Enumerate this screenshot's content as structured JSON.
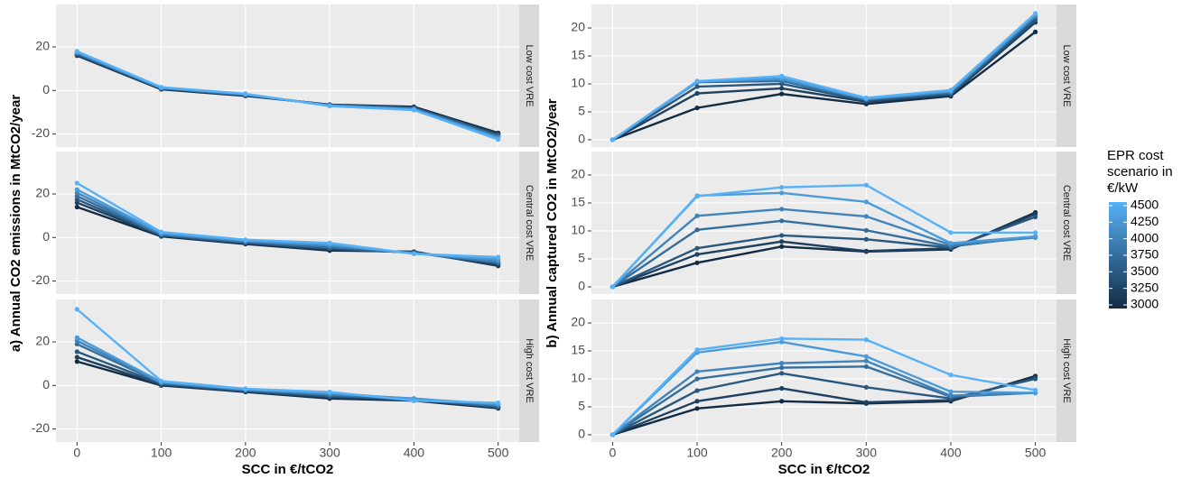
{
  "chart_data": [
    {
      "type": "line",
      "ylabel": "a) Annual CO2 emissions in MtCO2/year",
      "xlabel": "SCC in €/tCO2",
      "x": [
        0,
        100,
        200,
        300,
        400,
        500
      ],
      "xlim": [
        -25,
        525
      ],
      "xticks": [
        0,
        100,
        200,
        300,
        400,
        500
      ],
      "ylim": [
        -26,
        39.5
      ],
      "yticks": [
        -20,
        0,
        20
      ],
      "grid": true,
      "facets": [
        {
          "label": "Low cost VRE",
          "series": [
            {
              "color": "#132B43",
              "values": [
                16,
                0.5,
                -2.5,
                -6.5,
                -7.5,
                -19.5
              ]
            },
            {
              "color": "#1E4161",
              "values": [
                16.3,
                0.7,
                -2.3,
                -6.6,
                -7.8,
                -20
              ]
            },
            {
              "color": "#29587F",
              "values": [
                16.7,
                0.9,
                -2.1,
                -6.7,
                -8,
                -20.5
              ]
            },
            {
              "color": "#346E9D",
              "values": [
                17,
                1,
                -2,
                -6.8,
                -8.3,
                -21
              ]
            },
            {
              "color": "#4084BB",
              "values": [
                17.3,
                1.2,
                -1.9,
                -6.9,
                -8.5,
                -21.5
              ]
            },
            {
              "color": "#4B9BD9",
              "values": [
                17.7,
                1.3,
                -1.7,
                -7,
                -8.8,
                -22
              ]
            },
            {
              "color": "#56B1F7",
              "values": [
                18,
                1.5,
                -1.5,
                -7.2,
                -9,
                -22.5
              ]
            }
          ]
        },
        {
          "label": "Central cost VRE",
          "series": [
            {
              "color": "#132B43",
              "values": [
                14,
                0.5,
                -3,
                -6,
                -6.5,
                -13
              ]
            },
            {
              "color": "#1E4161",
              "values": [
                16,
                0.8,
                -2.7,
                -5.5,
                -6.8,
                -12.5
              ]
            },
            {
              "color": "#29587F",
              "values": [
                17.5,
                1,
                -2.4,
                -5,
                -7,
                -12
              ]
            },
            {
              "color": "#346E9D",
              "values": [
                19,
                1.3,
                -2,
                -4.5,
                -7,
                -11.5
              ]
            },
            {
              "color": "#4084BB",
              "values": [
                20.5,
                1.6,
                -1.7,
                -3.8,
                -7.2,
                -11
              ]
            },
            {
              "color": "#4B9BD9",
              "values": [
                22,
                2,
                -1.4,
                -3.2,
                -7.4,
                -10
              ]
            },
            {
              "color": "#56B1F7",
              "values": [
                25,
                2.5,
                -1,
                -2.5,
                -7.5,
                -9
              ]
            }
          ]
        },
        {
          "label": "High cost VRE",
          "series": [
            {
              "color": "#132B43",
              "values": [
                11,
                0,
                -3,
                -6,
                -7,
                -10.5
              ]
            },
            {
              "color": "#1E4161",
              "values": [
                13,
                0.3,
                -2.8,
                -5.5,
                -6.8,
                -10
              ]
            },
            {
              "color": "#29587F",
              "values": [
                15.5,
                0.7,
                -2.5,
                -5,
                -6.5,
                -10
              ]
            },
            {
              "color": "#346E9D",
              "values": [
                19,
                1,
                -2.2,
                -4.5,
                -6.3,
                -9.5
              ]
            },
            {
              "color": "#4084BB",
              "values": [
                20.5,
                1.3,
                -2,
                -4,
                -6,
                -9
              ]
            },
            {
              "color": "#4B9BD9",
              "values": [
                22,
                1.6,
                -1.8,
                -3.5,
                -6.2,
                -8.5
              ]
            },
            {
              "color": "#56B1F7",
              "values": [
                35,
                2,
                -1.5,
                -3,
                -7,
                -8
              ]
            }
          ]
        }
      ]
    },
    {
      "type": "line",
      "ylabel": "b) Annual captured CO2 in MtCO2/year",
      "xlabel": "SCC in €/tCO2",
      "x": [
        0,
        100,
        200,
        300,
        400,
        500
      ],
      "xlim": [
        -25,
        525
      ],
      "xticks": [
        0,
        100,
        200,
        300,
        400,
        500
      ],
      "ylim": [
        -1.3,
        24.2
      ],
      "yticks": [
        0,
        5,
        10,
        15,
        20
      ],
      "grid": true,
      "facets": [
        {
          "label": "Low cost VRE",
          "series": [
            {
              "color": "#132B43",
              "values": [
                0,
                5.7,
                8.2,
                6.4,
                7.8,
                19.3
              ]
            },
            {
              "color": "#1E4161",
              "values": [
                0,
                8.3,
                9.2,
                6.8,
                8,
                21
              ]
            },
            {
              "color": "#29587F",
              "values": [
                0,
                9.5,
                10,
                7,
                8.2,
                21.5
              ]
            },
            {
              "color": "#346E9D",
              "values": [
                0,
                10.3,
                10.5,
                7.2,
                8.4,
                22
              ]
            },
            {
              "color": "#4084BB",
              "values": [
                0,
                10.4,
                10.8,
                7.3,
                8.6,
                22.2
              ]
            },
            {
              "color": "#4B9BD9",
              "values": [
                0,
                10.4,
                11,
                7.3,
                8.7,
                22.4
              ]
            },
            {
              "color": "#56B1F7",
              "values": [
                0,
                10.5,
                11.4,
                7.5,
                8.9,
                22.6
              ]
            }
          ]
        },
        {
          "label": "Central cost VRE",
          "series": [
            {
              "color": "#132B43",
              "values": [
                0,
                4.3,
                7.2,
                6.3,
                6.7,
                13.3
              ]
            },
            {
              "color": "#1E4161",
              "values": [
                0,
                5.8,
                8.1,
                6.4,
                6.9,
                13
              ]
            },
            {
              "color": "#29587F",
              "values": [
                0,
                6.9,
                9.2,
                8.5,
                7,
                12.5
              ]
            },
            {
              "color": "#346E9D",
              "values": [
                0,
                10.2,
                11.8,
                10.1,
                7.2,
                9
              ]
            },
            {
              "color": "#4084BB",
              "values": [
                0,
                12.7,
                13.9,
                12.6,
                7.5,
                8.8
              ]
            },
            {
              "color": "#4B9BD9",
              "values": [
                0,
                16.3,
                16.8,
                15.2,
                7.8,
                9
              ]
            },
            {
              "color": "#56B1F7",
              "values": [
                0,
                16.2,
                17.8,
                18.2,
                9.7,
                9.7
              ]
            }
          ]
        },
        {
          "label": "High cost VRE",
          "series": [
            {
              "color": "#132B43",
              "values": [
                0,
                4.7,
                6,
                5.6,
                6,
                10.5
              ]
            },
            {
              "color": "#1E4161",
              "values": [
                0,
                6,
                8.3,
                5.8,
                6.2,
                10.2
              ]
            },
            {
              "color": "#29587F",
              "values": [
                0,
                7.9,
                11,
                8.5,
                6.5,
                10
              ]
            },
            {
              "color": "#346E9D",
              "values": [
                0,
                10,
                12,
                12.2,
                6.8,
                7.5
              ]
            },
            {
              "color": "#4084BB",
              "values": [
                0,
                11.3,
                12.8,
                13.2,
                7,
                7.5
              ]
            },
            {
              "color": "#4B9BD9",
              "values": [
                0,
                14.7,
                16.6,
                14,
                7.7,
                7.5
              ]
            },
            {
              "color": "#56B1F7",
              "values": [
                0,
                15.2,
                17.2,
                17,
                10.7,
                8
              ]
            }
          ]
        }
      ],
      "colorbar": {
        "title": "EPR cost scenario in €/kW",
        "limits": [
          3000,
          4500
        ],
        "ticks": [
          3000,
          3250,
          3500,
          3750,
          4000,
          4250,
          4500
        ],
        "colors": [
          "#132B43",
          "#56B1F7"
        ]
      }
    }
  ]
}
